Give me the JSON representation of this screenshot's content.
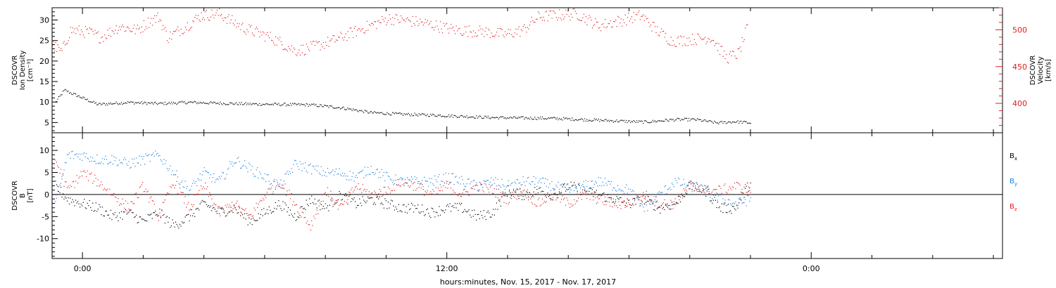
{
  "colors": {
    "black": "#000000",
    "red": "#e02020",
    "blue": "#1a7fe0"
  },
  "xaxis": {
    "label": "hours:minutes, Nov. 15, 2017 - Nov. 17, 2017",
    "unit": "hours",
    "range": [
      -1.0,
      30.3
    ],
    "ticks": [
      {
        "value": 0,
        "label": "0:00"
      },
      {
        "value": 12,
        "label": "12:00"
      },
      {
        "value": 24,
        "label": "0:00"
      }
    ],
    "minor_step": 2
  },
  "chart_data": [
    {
      "type": "scatter",
      "panel": "top",
      "ylabel_left": [
        "DSCOVR",
        "Ion Density",
        "[cm⁻³]"
      ],
      "ylabel_right": [
        "DSCOVR",
        "Velocity",
        "[km/s]"
      ],
      "ylim_left": [
        2.5,
        33
      ],
      "yticks_left": [
        5,
        10,
        15,
        20,
        25,
        30
      ],
      "ylim_right": [
        360,
        530
      ],
      "yticks_right": [
        400,
        450,
        500
      ],
      "grid": false,
      "series": [
        {
          "axis": "left",
          "color": "black",
          "x": [
            -0.9,
            -0.6,
            -0.3,
            0.5,
            1.5,
            2.5,
            3.5,
            4.5,
            5.5,
            6.5,
            7.5,
            8.5,
            9.5,
            10.5,
            11.5,
            12.5,
            13.5,
            14.5,
            15.5,
            16.5,
            17.5,
            18.5,
            19.5,
            20.2,
            20.9,
            21.5,
            22.0
          ],
          "y": [
            10,
            13,
            12,
            9.5,
            10,
            9.7,
            10.0,
            9.8,
            9.6,
            9.5,
            9.4,
            8.7,
            7.5,
            7.1,
            6.9,
            6.6,
            6.3,
            6.2,
            6.1,
            5.8,
            5.5,
            5.2,
            5.8,
            5.8,
            5.0,
            5.3,
            5.0
          ]
        },
        {
          "axis": "right",
          "color": "red",
          "x": [
            -1.0,
            -0.7,
            -0.4,
            0.2,
            0.6,
            1.2,
            1.8,
            2.2,
            2.5,
            2.8,
            3.4,
            3.9,
            4.5,
            5.3,
            6.2,
            7.0,
            7.4,
            8.2,
            9.2,
            10.1,
            11.2,
            12.3,
            13.2,
            13.9,
            14.5,
            15.0,
            15.5,
            16.3,
            17.0,
            17.8,
            18.4,
            18.9,
            19.4,
            20.2,
            20.7,
            21.2,
            21.6,
            21.9
          ],
          "y": [
            480,
            470,
            500,
            497,
            490,
            505,
            500,
            512,
            518,
            490,
            505,
            520,
            522,
            503,
            490,
            472,
            475,
            485,
            502,
            516,
            510,
            500,
            498,
            494,
            500,
            518,
            520,
            522,
            506,
            514,
            520,
            500,
            485,
            488,
            490,
            462,
            468,
            505
          ]
        }
      ]
    },
    {
      "type": "scatter",
      "panel": "bottom",
      "ylabel_left": [
        "DSCOVR",
        "B",
        "[nT]"
      ],
      "ylim_left": [
        -14.5,
        14
      ],
      "yticks_left": [
        -10,
        -5,
        0,
        5,
        10
      ],
      "zero_line": true,
      "grid": false,
      "legend": [
        "Bx",
        "By",
        "Bz"
      ],
      "legend_placement": "right",
      "series": [
        {
          "name": "Bx",
          "color": "black",
          "x": [
            -0.9,
            -0.5,
            0.0,
            0.5,
            1.0,
            1.5,
            2.0,
            2.5,
            3.0,
            3.5,
            4.0,
            4.5,
            5.0,
            5.5,
            6.0,
            6.5,
            7.0,
            7.5,
            8.0,
            8.5,
            9.0,
            9.5,
            10.0,
            10.5,
            11.0,
            11.5,
            12.0,
            12.5,
            13.0,
            13.5,
            14.0,
            14.5,
            15.0,
            15.5,
            16.0,
            16.5,
            17.0,
            17.5,
            18.0,
            18.5,
            19.0,
            19.5,
            20.0,
            20.5,
            21.0,
            21.5,
            22.0
          ],
          "y": [
            2,
            -1,
            -2,
            -3,
            -5,
            -4,
            -6,
            -4,
            -7,
            -5,
            -2,
            -4,
            -3,
            -6,
            -4,
            -2,
            -5,
            -1,
            -3,
            0,
            -2,
            -1,
            -2,
            -3,
            -3,
            -4,
            -3,
            -3,
            -5,
            -4,
            1,
            0,
            1,
            0,
            2,
            1,
            0,
            -1,
            -2,
            -1,
            -3,
            -2,
            2,
            1,
            -3,
            -3,
            3
          ]
        },
        {
          "name": "By",
          "color": "blue",
          "x": [
            -0.9,
            -0.5,
            0.0,
            0.5,
            1.0,
            1.5,
            2.0,
            2.5,
            3.0,
            3.5,
            4.0,
            4.5,
            5.0,
            5.5,
            6.0,
            6.5,
            7.0,
            7.5,
            8.0,
            8.5,
            9.0,
            9.5,
            10.0,
            10.5,
            11.0,
            11.5,
            12.0,
            12.5,
            13.0,
            13.5,
            14.0,
            14.5,
            15.0,
            15.5,
            16.0,
            16.5,
            17.0,
            17.5,
            18.0,
            18.5,
            19.0,
            19.5,
            20.0,
            20.5,
            21.0,
            21.5,
            22.0
          ],
          "y": [
            -2,
            9,
            9,
            8,
            8,
            7,
            8,
            9,
            5,
            1,
            5,
            3,
            8,
            6,
            4,
            2,
            7,
            6,
            5,
            5,
            4,
            6,
            4,
            3,
            3,
            3,
            4,
            3,
            2,
            3,
            2,
            3,
            3,
            2,
            1,
            2,
            3,
            2,
            1,
            -3,
            0,
            3,
            2,
            1,
            -1,
            -2,
            -1
          ]
        },
        {
          "name": "Bz",
          "color": "red",
          "x": [
            -0.9,
            -0.5,
            0.0,
            0.5,
            1.0,
            1.5,
            2.0,
            2.5,
            3.0,
            3.5,
            4.0,
            4.5,
            5.0,
            5.5,
            6.0,
            6.5,
            7.0,
            7.5,
            8.0,
            8.5,
            9.0,
            9.5,
            10.0,
            10.5,
            11.0,
            11.5,
            12.0,
            12.5,
            13.0,
            13.5,
            14.0,
            14.5,
            15.0,
            15.5,
            16.0,
            16.5,
            17.0,
            17.5,
            18.0,
            18.5,
            19.0,
            19.5,
            20.0,
            20.5,
            21.0,
            21.5,
            22.0
          ],
          "y": [
            8,
            1,
            5,
            3,
            0,
            -3,
            2,
            -5,
            3,
            -3,
            2,
            -4,
            -2,
            -5,
            0,
            3,
            -2,
            -7,
            1,
            -3,
            2,
            0,
            1,
            3,
            2,
            0,
            2,
            0,
            2,
            1,
            -1,
            1,
            -2,
            0,
            -2,
            0,
            -1,
            -2,
            -2,
            0,
            -2,
            -2,
            2,
            1,
            1,
            2,
            1
          ]
        }
      ]
    }
  ]
}
